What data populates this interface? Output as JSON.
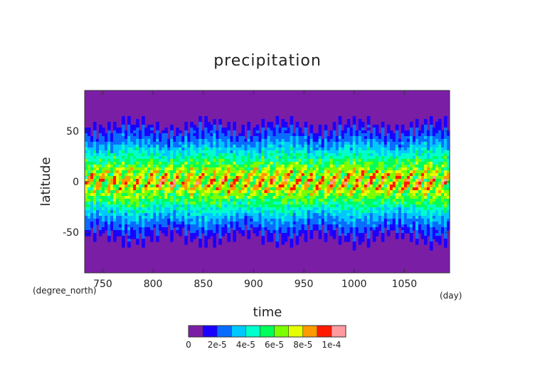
{
  "chart_data": {
    "type": "heatmap",
    "title": "precipitation",
    "xlabel": "time",
    "ylabel": "latitude",
    "x_unit": "(day)",
    "y_unit": "(degree_north)",
    "xlim": [
      732,
      1095
    ],
    "ylim": [
      -90,
      90
    ],
    "x_ticks": [
      750,
      800,
      850,
      900,
      950,
      1000,
      1050
    ],
    "y_ticks": [
      -50,
      0,
      50
    ],
    "profile": {
      "latitudes": [
        -90,
        -70,
        -60,
        -55,
        -50,
        -45,
        -40,
        -35,
        -30,
        -25,
        -20,
        -15,
        -10,
        -5,
        0,
        5,
        10,
        15,
        20,
        25,
        30,
        35,
        40,
        45,
        50,
        55,
        60,
        70,
        90
      ],
      "values": [
        4e-06,
        4e-06,
        5e-06,
        9e-06,
        1.6e-05,
        2.2e-05,
        2.7e-05,
        3.3e-05,
        4e-05,
        4.7e-05,
        5.4e-05,
        6.2e-05,
        6.9e-05,
        7.4e-05,
        7.7e-05,
        7.4e-05,
        6.9e-05,
        6.2e-05,
        5.4e-05,
        4.7e-05,
        4e-05,
        3.3e-05,
        2.7e-05,
        2.2e-05,
        1.6e-05,
        9e-06,
        5e-06,
        4e-06,
        4e-06
      ]
    },
    "colorbar": {
      "levels": [
        0,
        1e-05,
        2e-05,
        3e-05,
        4e-05,
        5e-05,
        6e-05,
        7e-05,
        8e-05,
        9e-05,
        0.0001
      ],
      "colors": [
        "#7b1ea6",
        "#1a00ff",
        "#0a6cff",
        "#00c8ff",
        "#00ffcc",
        "#00ff5a",
        "#7cff00",
        "#e6ff00",
        "#ff9900",
        "#ff1a00",
        "#ff9aa0"
      ],
      "tick_labels": [
        "0",
        "2e-5",
        "4e-5",
        "6e-5",
        "8e-5",
        "1e-4"
      ]
    }
  }
}
